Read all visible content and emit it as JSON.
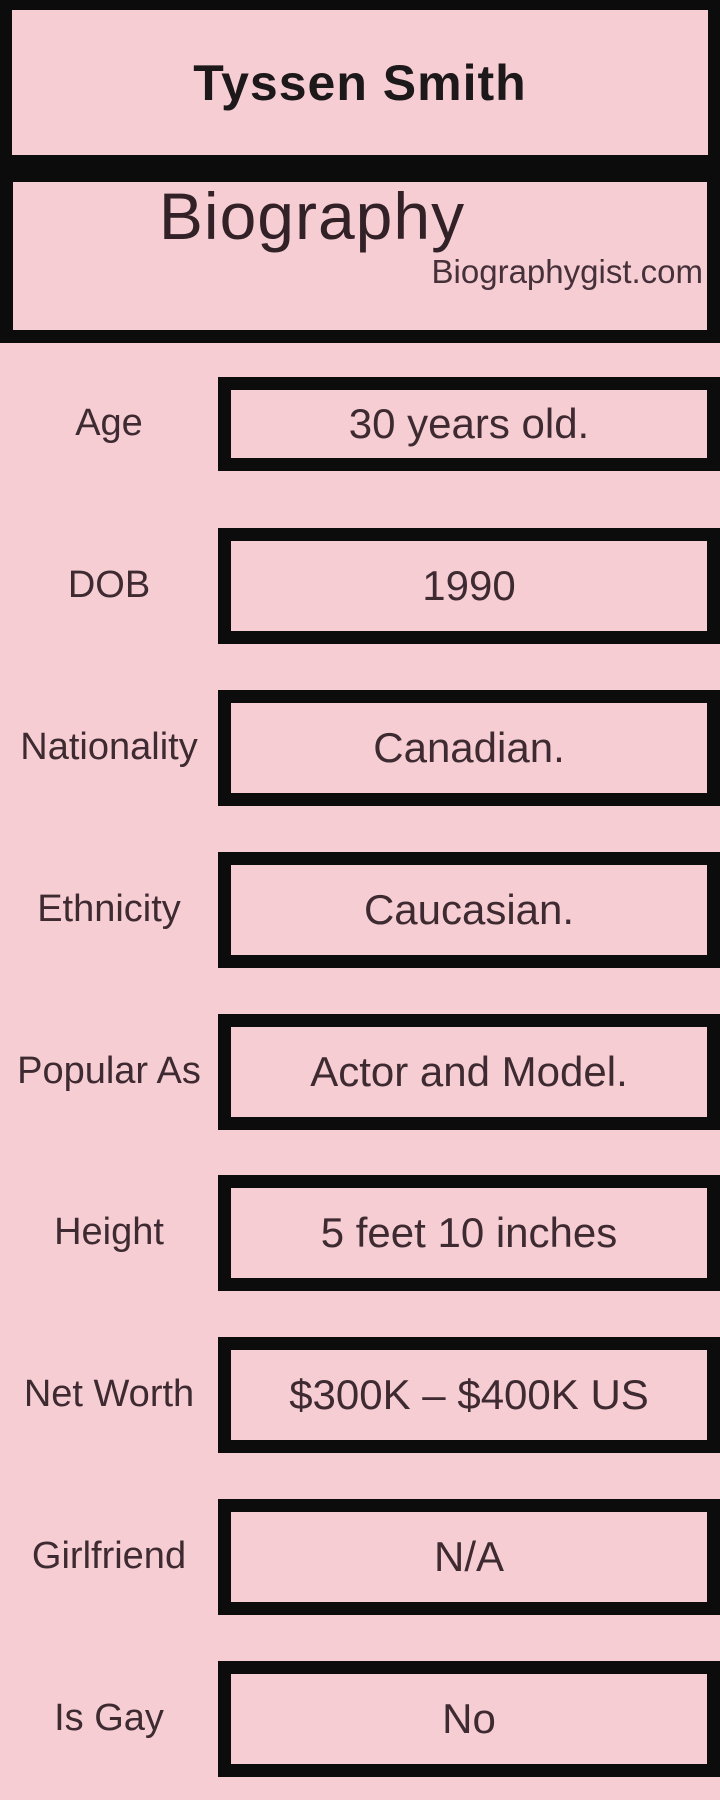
{
  "header": {
    "name": "Tyssen Smith",
    "section_title": "Biography",
    "website": "Biographygist.com"
  },
  "rows": [
    {
      "label": "Age",
      "value": "30 years old."
    },
    {
      "label": "DOB",
      "value": "1990"
    },
    {
      "label": "Nationality",
      "value": "Canadian."
    },
    {
      "label": "Ethnicity",
      "value": "Caucasian."
    },
    {
      "label": "Popular As",
      "value": "Actor and Model."
    },
    {
      "label": "Height",
      "value": "5 feet 10 inches"
    },
    {
      "label": "Net Worth",
      "value": "$300K – $400K US"
    },
    {
      "label": "Girlfriend",
      "value": "N/A"
    },
    {
      "label": "Is Gay",
      "value": "No"
    }
  ],
  "colors": {
    "background_pink": "#f6cdd3",
    "border_black": "#0d0c0c",
    "text_dark": "#3e2a31",
    "title_dark": "#1d1819"
  }
}
